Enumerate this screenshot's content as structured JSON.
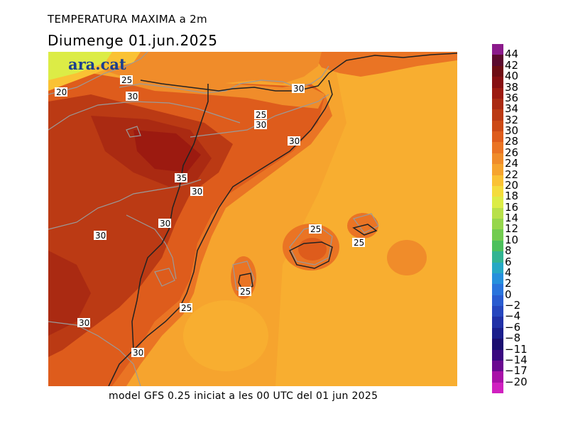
{
  "header": {
    "title": "TEMPERATURA MAXIMA a 2m",
    "date": "Diumenge  01.jun.2025"
  },
  "logo": "ara.cat",
  "footer": "model GFS 0.25 iniciat a les 00 UTC del 01 jun 2025",
  "colorbar": {
    "labels": [
      "44",
      "42",
      "40",
      "38",
      "36",
      "34",
      "32",
      "30",
      "28",
      "26",
      "24",
      "22",
      "20",
      "18",
      "16",
      "14",
      "12",
      "10",
      "8",
      "6",
      "4",
      "2",
      "0",
      "−2",
      "−4",
      "−6",
      "−8",
      "−11",
      "−14",
      "−17",
      "−20"
    ],
    "colors": [
      "#8b1a8b",
      "#5c0a2e",
      "#6e0d14",
      "#860f12",
      "#9c1a10",
      "#aa2a12",
      "#bb3a14",
      "#cc4a16",
      "#de5c1c",
      "#ea7424",
      "#f08c2a",
      "#f6a42e",
      "#fac234",
      "#f4dc3c",
      "#dcec46",
      "#b8e04a",
      "#96d64c",
      "#72cc50",
      "#4cc05c",
      "#32b492",
      "#26a8c4",
      "#2690dc",
      "#2a74dc",
      "#2a5cd0",
      "#2646be",
      "#2030a6",
      "#1a1e8c",
      "#1a0e70",
      "#3a0880",
      "#6a0890",
      "#a810a8",
      "#d020c0"
    ]
  },
  "contour_labels": [
    {
      "id": "25-a",
      "text": "25"
    },
    {
      "id": "20",
      "text": "20"
    },
    {
      "id": "30-a",
      "text": "30"
    },
    {
      "id": "30-b",
      "text": "30"
    },
    {
      "id": "25-b",
      "text": "25"
    },
    {
      "id": "30-c",
      "text": "30"
    },
    {
      "id": "30-d",
      "text": "30"
    },
    {
      "id": "35",
      "text": "35"
    },
    {
      "id": "30-e",
      "text": "30"
    },
    {
      "id": "30-f",
      "text": "30"
    },
    {
      "id": "30-g",
      "text": "30"
    },
    {
      "id": "25-c",
      "text": "25"
    },
    {
      "id": "25-d",
      "text": "25"
    },
    {
      "id": "25-e",
      "text": "25"
    },
    {
      "id": "25-f",
      "text": "25"
    },
    {
      "id": "30-h",
      "text": "30"
    },
    {
      "id": "30-i",
      "text": "30"
    }
  ]
}
